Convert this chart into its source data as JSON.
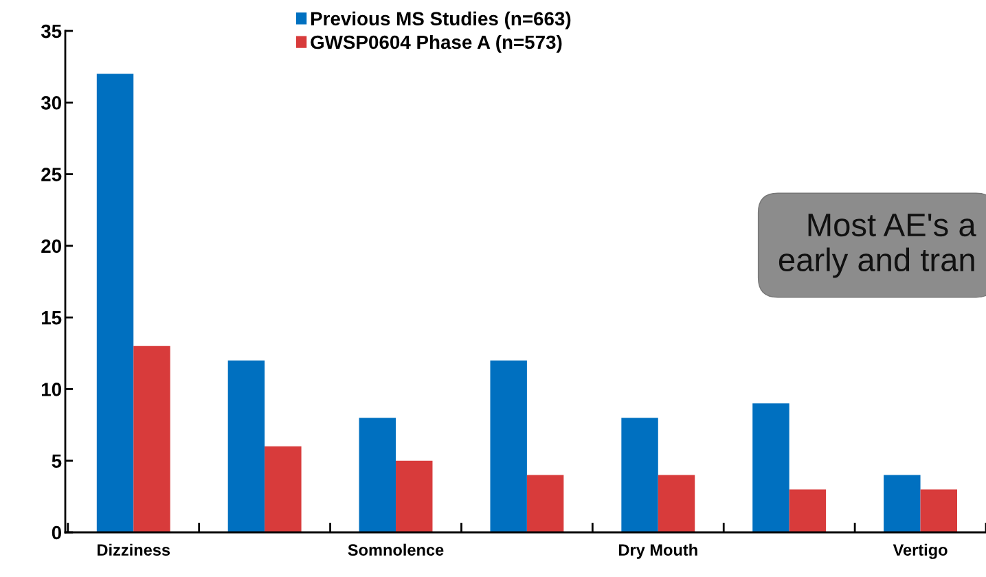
{
  "chart_data": {
    "type": "bar",
    "categories": [
      "Dizziness",
      null,
      "Somnolence",
      null,
      "Dry Mouth",
      null,
      "Vertigo"
    ],
    "series": [
      {
        "name": "Previous MS Studies (n=663)",
        "color": "#0070c0",
        "values": [
          32,
          12,
          8,
          12,
          8,
          9,
          4
        ]
      },
      {
        "name": "GWSP0604 Phase A (n=573)",
        "color": "#d83b3b",
        "values": [
          13,
          6,
          5,
          4,
          4,
          3,
          3
        ]
      }
    ],
    "ylim": [
      0,
      35
    ],
    "yticks": [
      0,
      5,
      10,
      15,
      20,
      25,
      30,
      35
    ],
    "grid": false,
    "legend": "top",
    "annotations": [
      "Most AE's a\nearly and tran"
    ]
  }
}
